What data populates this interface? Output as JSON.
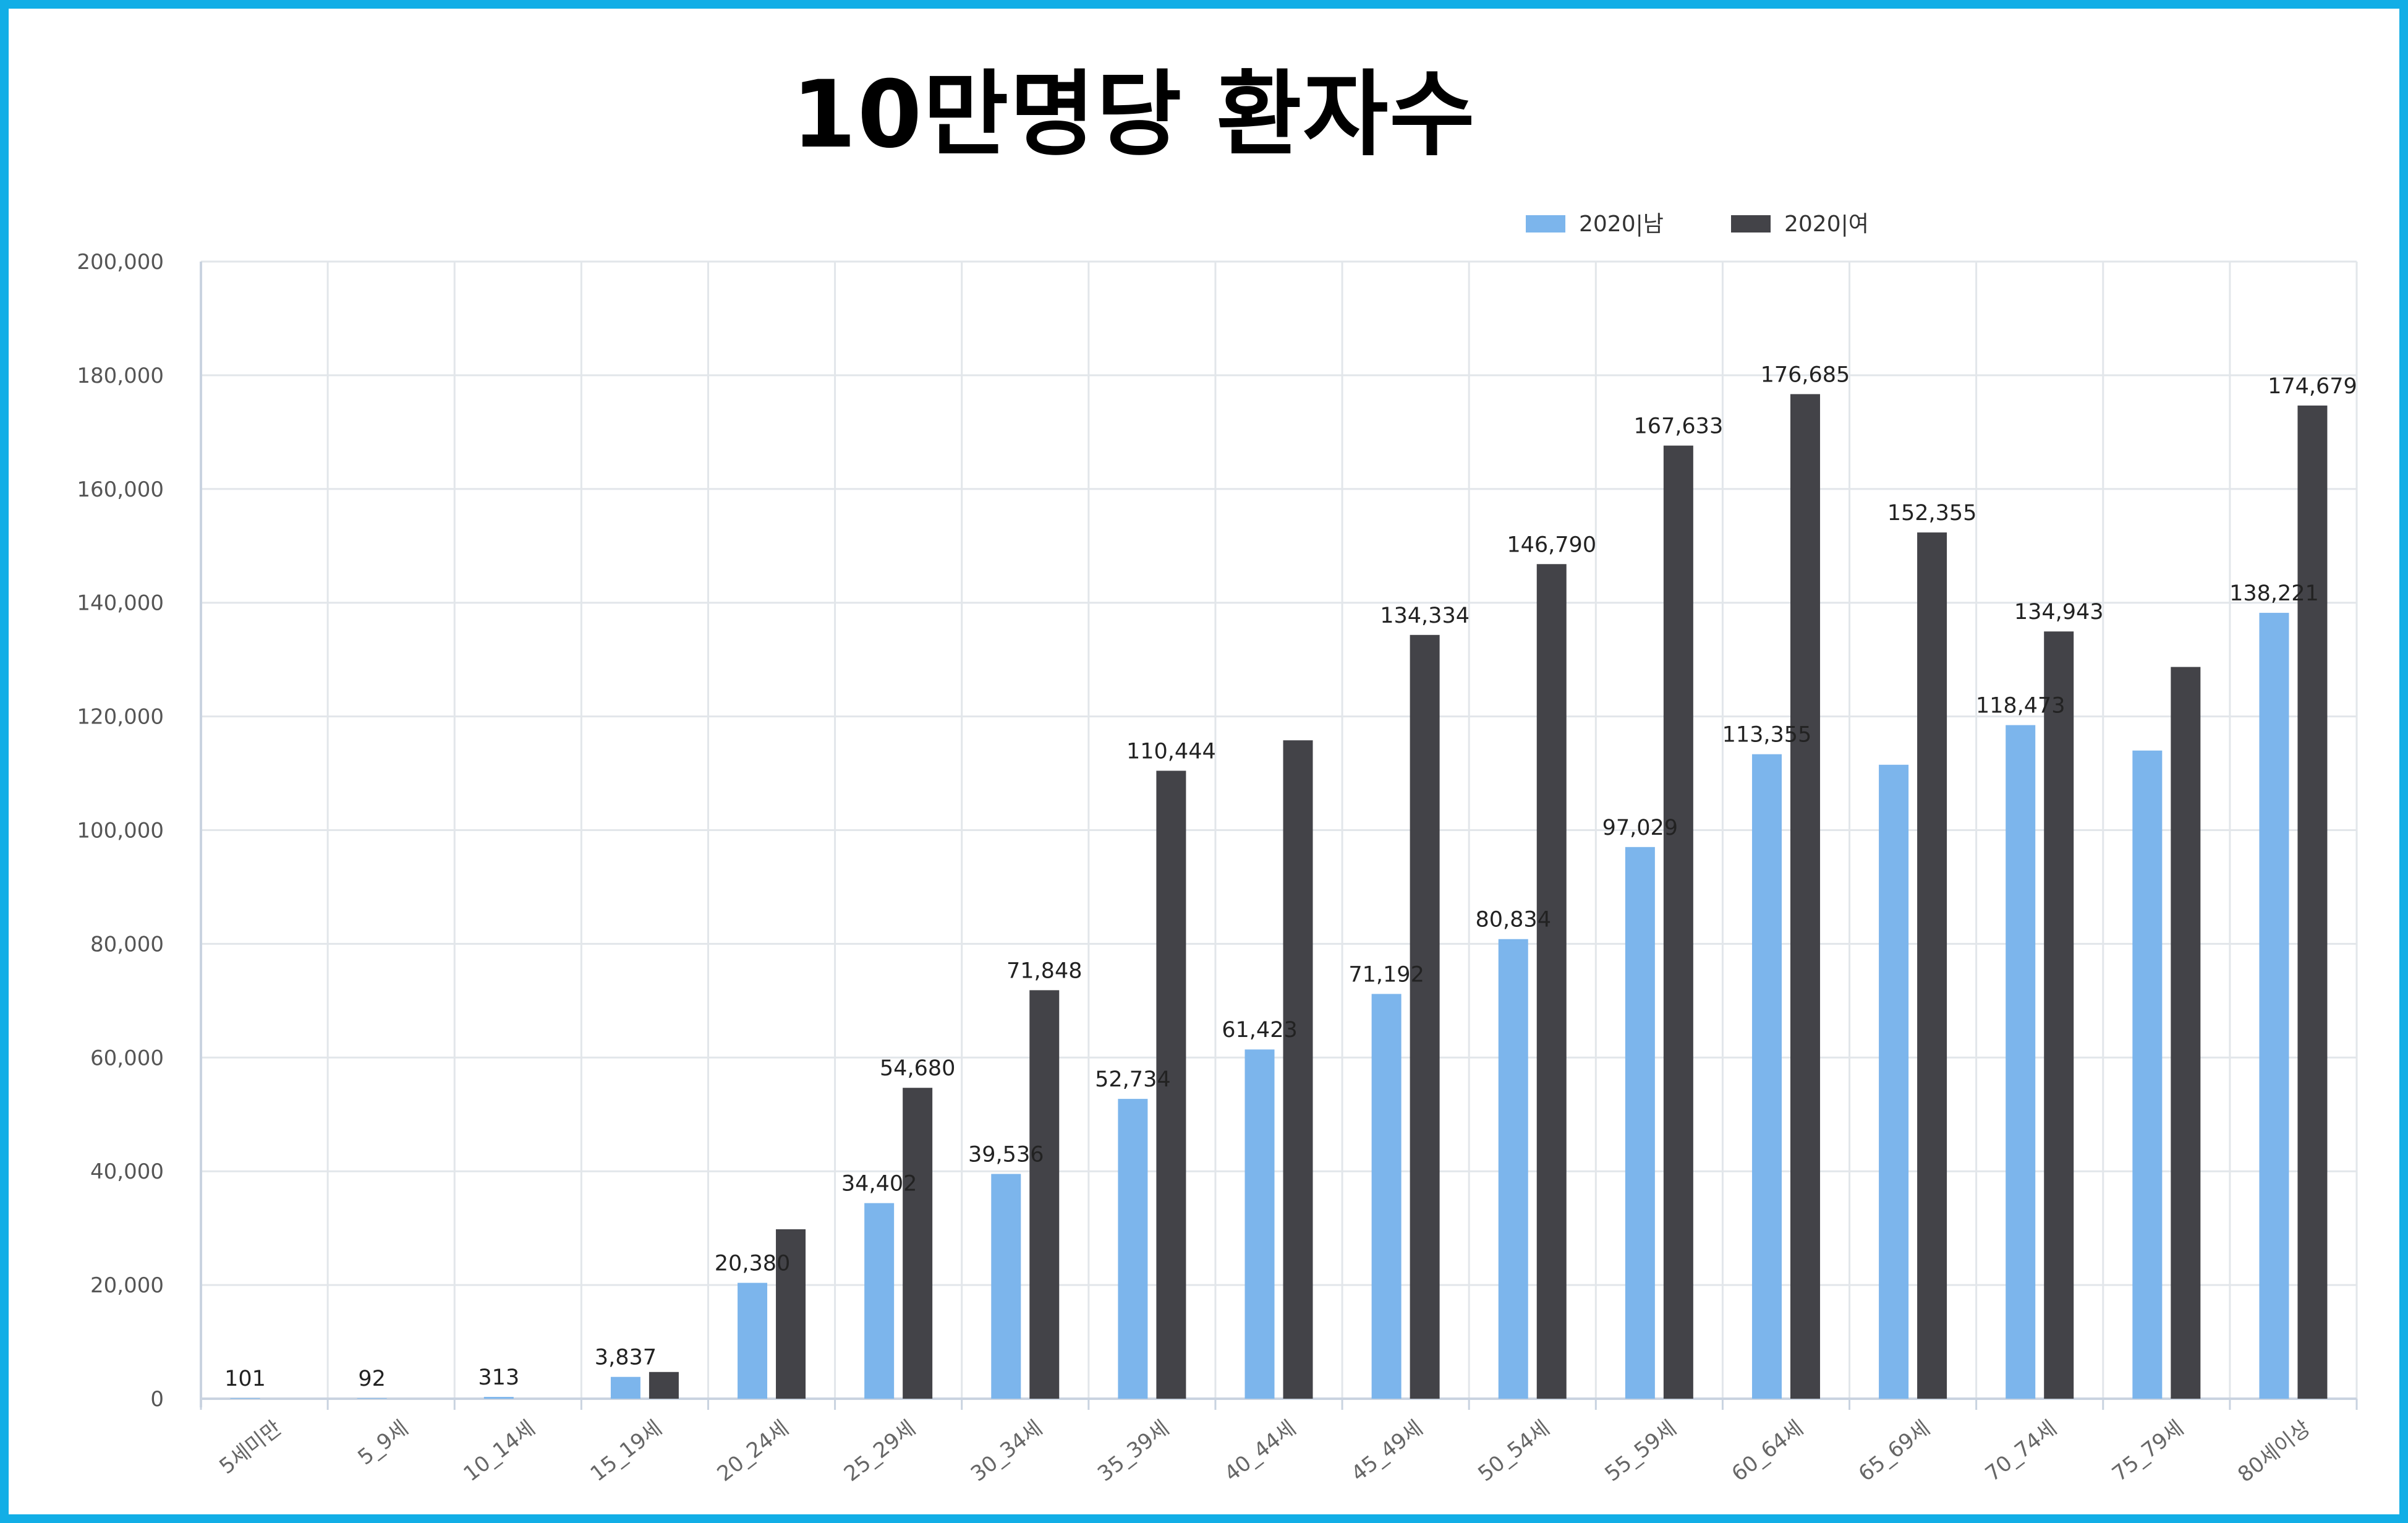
{
  "chart_data": {
    "type": "bar",
    "title": "10만명당 환자수",
    "xlabel": "",
    "ylabel": "",
    "ylim": [
      0,
      200000
    ],
    "y_ticks": [
      "0",
      "20,000",
      "40,000",
      "60,000",
      "80,000",
      "100,000",
      "120,000",
      "140,000",
      "160,000",
      "180,000",
      "200,000"
    ],
    "grid": true,
    "legend_position": "top-right",
    "categories": [
      "5세미만",
      "5_9세",
      "10_14세",
      "15_19세",
      "20_24세",
      "25_29세",
      "30_34세",
      "35_39세",
      "40_44세",
      "45_49세",
      "50_54세",
      "55_59세",
      "60_64세",
      "65_69세",
      "70_74세",
      "75_79세",
      "80세이상"
    ],
    "series": [
      {
        "name": "2020|남",
        "color": "#7cb5ec",
        "values": [
          101,
          92,
          313,
          3837,
          20380,
          34402,
          39536,
          52734,
          61423,
          71192,
          80834,
          97029,
          113355,
          111500,
          118473,
          114000,
          138221
        ],
        "labels": [
          "101",
          "92",
          "313",
          "3,837",
          "20,380",
          "34,402",
          "39,536",
          "52,734",
          "61,423",
          "71,192",
          "80,834",
          "97,029",
          "113,355",
          "",
          "118,473",
          "",
          "138,221"
        ]
      },
      {
        "name": "2020|여",
        "color": "#434348",
        "values": [
          0,
          0,
          0,
          4700,
          29800,
          54680,
          71848,
          110444,
          115800,
          134334,
          146790,
          167633,
          176685,
          152355,
          134943,
          128700,
          174679
        ],
        "labels": [
          "",
          "",
          "",
          "",
          "",
          "54,680",
          "71,848",
          "110,444",
          "",
          "134,334",
          "146,790",
          "167,633",
          "176,685",
          "152,355",
          "134,943",
          "",
          "174,679"
        ]
      }
    ]
  }
}
